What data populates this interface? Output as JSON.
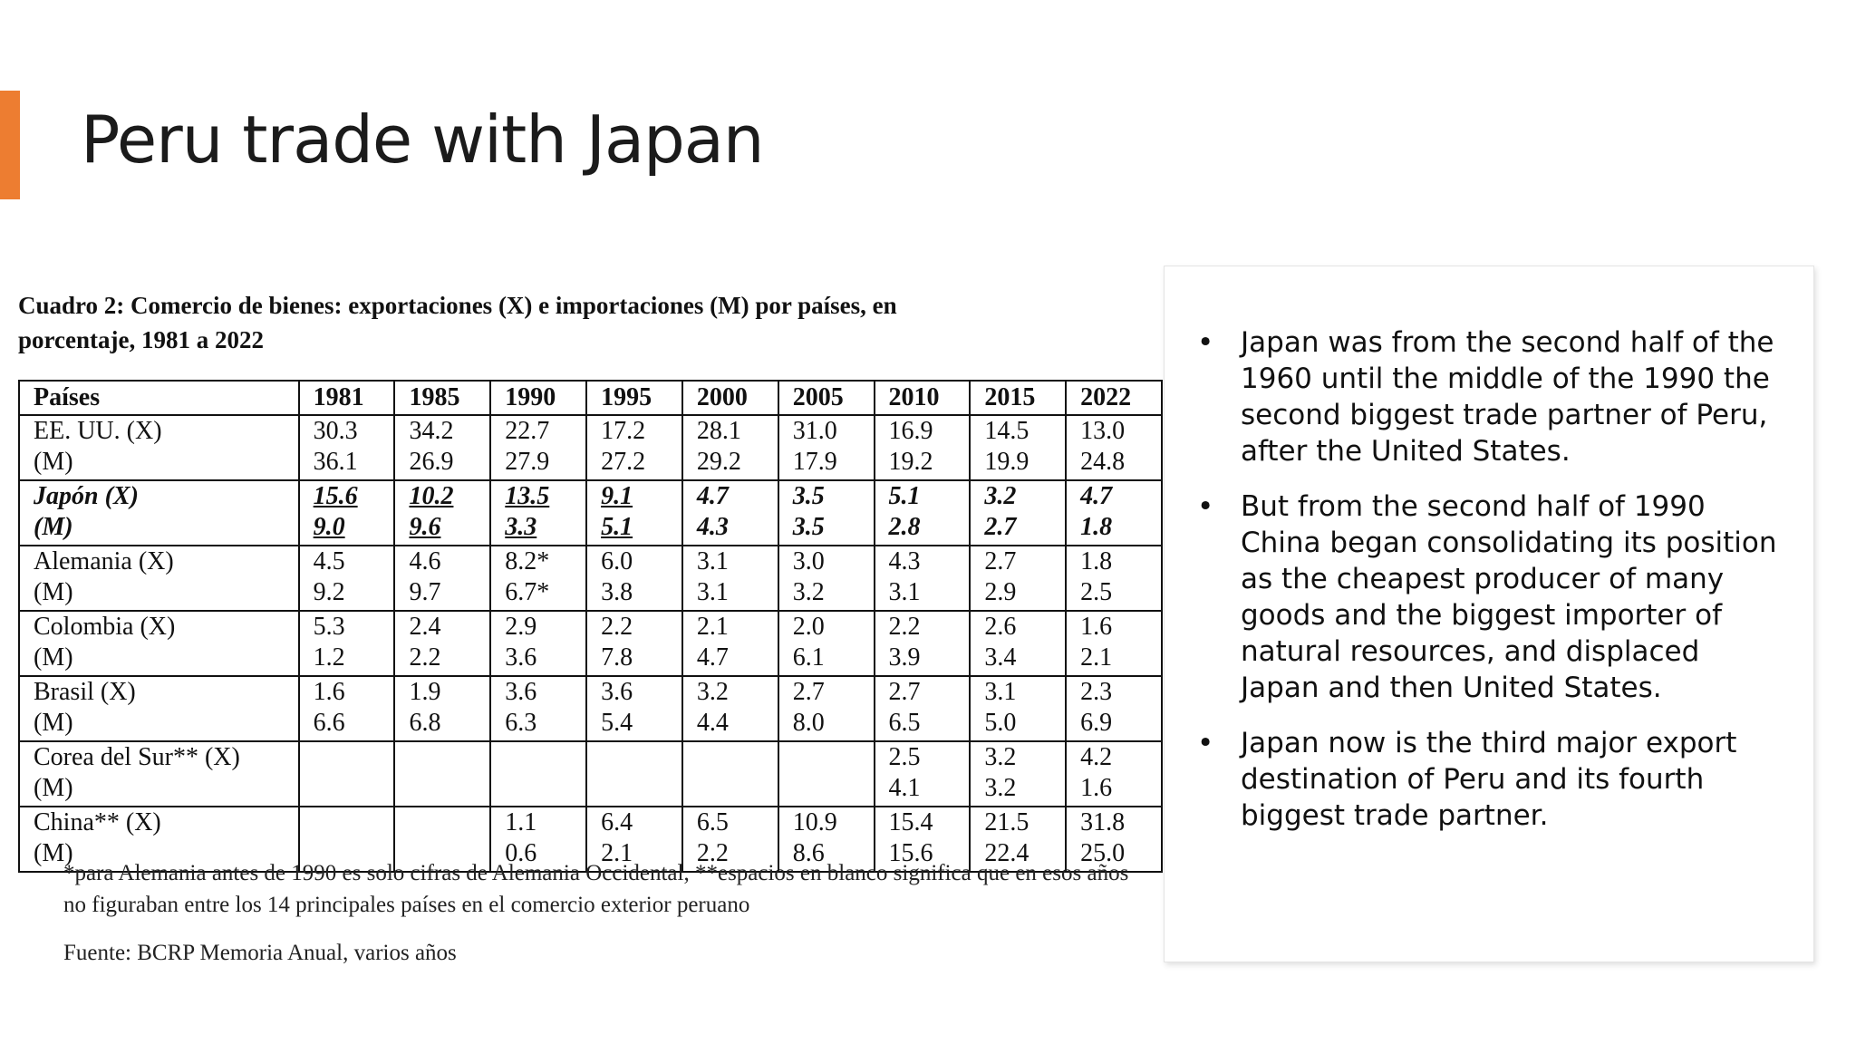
{
  "slide": {
    "title": "Peru trade with Japan"
  },
  "table": {
    "caption": "Cuadro 2: Comercio de bienes: exportaciones (X) e importaciones (M) por países, en porcentaje, 1981 a 2022",
    "header": [
      "Países",
      "1981",
      "1985",
      "1990",
      "1995",
      "2000",
      "2005",
      "2010",
      "2015",
      "2022"
    ],
    "rows": [
      {
        "country_x": "EE. UU. (X)",
        "country_m": "(M)",
        "x": [
          "30.3",
          "34.2",
          "22.7",
          "17.2",
          "28.1",
          "31.0",
          "16.9",
          "14.5",
          "13.0"
        ],
        "m": [
          "36.1",
          "26.9",
          "27.9",
          "27.2",
          "29.2",
          "17.9",
          "19.2",
          "19.9",
          "24.8"
        ]
      },
      {
        "country_x": "Japón (X)",
        "country_m": "(M)",
        "x": [
          "15.6",
          "10.2",
          "13.5",
          "9.1",
          "4.7",
          "3.5",
          "5.1",
          "3.2",
          "4.7"
        ],
        "m": [
          "9.0",
          "9.6",
          "3.3",
          "5.1",
          "4.3",
          "3.5",
          "2.8",
          "2.7",
          "1.8"
        ]
      },
      {
        "country_x": "Alemania (X)",
        "country_m": "(M)",
        "x": [
          "4.5",
          "4.6",
          "8.2*",
          "6.0",
          "3.1",
          "3.0",
          "4.3",
          "2.7",
          "1.8"
        ],
        "m": [
          "9.2",
          "9.7",
          "6.7*",
          "3.8",
          "3.1",
          "3.2",
          "3.1",
          "2.9",
          "2.5"
        ]
      },
      {
        "country_x": "Colombia (X)",
        "country_m": "(M)",
        "x": [
          "5.3",
          "2.4",
          "2.9",
          "2.2",
          "2.1",
          "2.0",
          "2.2",
          "2.6",
          "1.6"
        ],
        "m": [
          "1.2",
          "2.2",
          "3.6",
          "7.8",
          "4.7",
          "6.1",
          "3.9",
          "3.4",
          "2.1"
        ]
      },
      {
        "country_x": "Brasil (X)",
        "country_m": "(M)",
        "x": [
          "1.6",
          "1.9",
          "3.6",
          "3.6",
          "3.2",
          "2.7",
          "2.7",
          "3.1",
          "2.3"
        ],
        "m": [
          "6.6",
          "6.8",
          "6.3",
          "5.4",
          "4.4",
          "8.0",
          "6.5",
          "5.0",
          "6.9"
        ]
      },
      {
        "country_x": "Corea del Sur** (X)",
        "country_m": "(M)",
        "x": [
          "",
          "",
          "",
          "",
          "",
          "",
          "2.5",
          "3.2",
          "4.2"
        ],
        "m": [
          "",
          "",
          "",
          "",
          "",
          "",
          "4.1",
          "3.2",
          "1.6"
        ]
      },
      {
        "country_x": "China** (X)",
        "country_m": "(M)",
        "x": [
          "",
          "",
          "1.1",
          "6.4",
          "6.5",
          "10.9",
          "15.4",
          "21.5",
          "31.8"
        ],
        "m": [
          "",
          "",
          "0.6",
          "2.1",
          "2.2",
          "8.6",
          "15.6",
          "22.4",
          "25.0"
        ]
      }
    ],
    "footnote": "*para Alemania antes de 1990 es solo cifras de Alemania Occidental, **espacios en blanco significa que en esos años no figuraban entre los 14 principales países en el comercio exterior peruano",
    "source": "Fuente: BCRP Memoria Anual, varios años"
  },
  "notes": {
    "bullet_glyph": "•",
    "bullets": [
      "Japan was from the second half of the 1960 until the middle of the 1990 the second biggest trade partner of Peru, after the United States.",
      "But from the second half of 1990 China began consolidating its position as the cheapest producer of many goods and the biggest importer of natural resources, and displaced Japan and then United States.",
      "Japan now is the third major export destination of Peru and its fourth biggest trade partner."
    ]
  },
  "colors": {
    "accent": "#ed7d31"
  }
}
